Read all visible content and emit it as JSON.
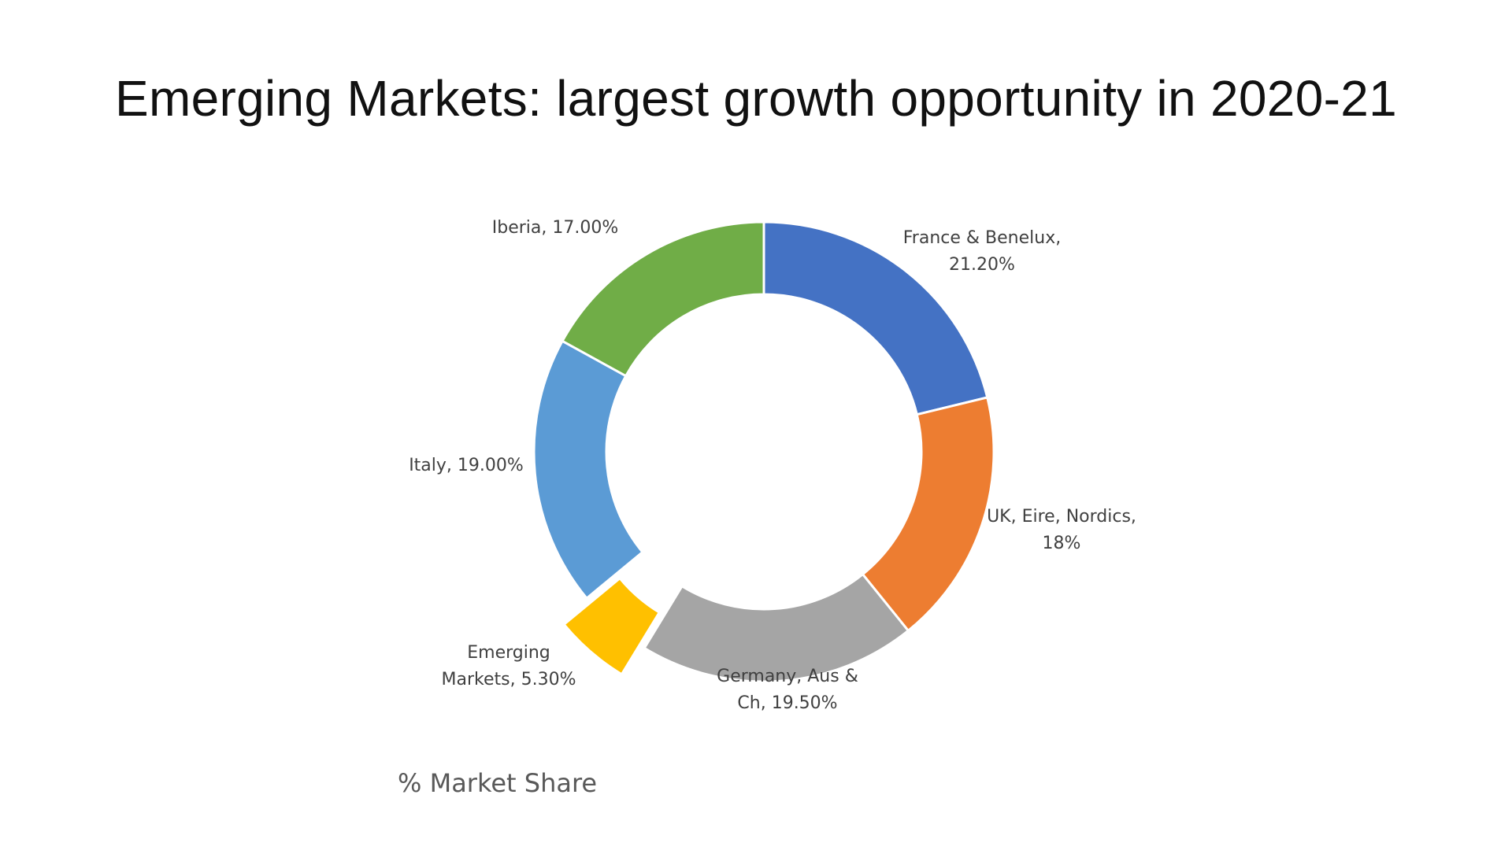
{
  "slide": {
    "title": "Emerging Markets: largest growth opportunity in 2020-21",
    "caption": "% Market Share"
  },
  "chart_data": {
    "type": "pie",
    "variant": "doughnut",
    "categories": [
      "France & Benelux",
      "UK, Eire, Nordics",
      "Germany, Aus & Ch",
      "Emerging Markets",
      "Italy",
      "Iberia"
    ],
    "values": [
      21.2,
      18,
      19.5,
      5.3,
      19.0,
      17.0
    ],
    "data_labels": [
      [
        "France & Benelux,",
        "21.20%"
      ],
      [
        "UK, Eire, Nordics,",
        "18%"
      ],
      [
        "Germany, Aus &",
        "Ch, 19.50%"
      ],
      [
        "Emerging",
        "Markets, 5.30%"
      ],
      [
        "Italy, 19.00%"
      ],
      [
        "Iberia, 17.00%"
      ]
    ],
    "colors": [
      "#4472C4",
      "#ED7D31",
      "#A5A5A5",
      "#FFC000",
      "#5B9BD5",
      "#70AD47"
    ],
    "exploded": [
      "Emerging Markets"
    ],
    "legend": "none"
  }
}
